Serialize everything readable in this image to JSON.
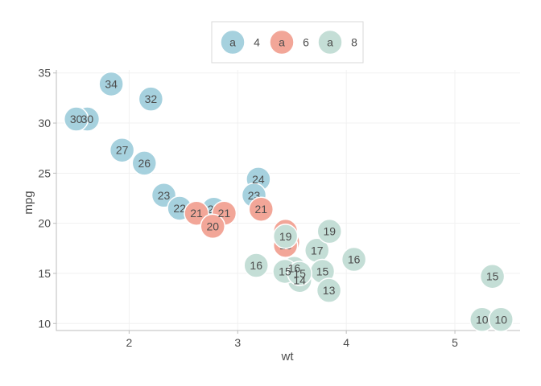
{
  "chart_data": {
    "type": "scatter",
    "xlabel": "wt",
    "ylabel": "mpg",
    "xlim": [
      1.33,
      5.6
    ],
    "ylim": [
      9.3,
      35.3
    ],
    "x_ticks": [
      2,
      3,
      4,
      5
    ],
    "y_ticks": [
      10,
      15,
      20,
      25,
      30,
      35
    ],
    "grid": true,
    "legend": {
      "placement": "top-center",
      "key_text": "a",
      "entries": [
        "4",
        "6",
        "8"
      ]
    },
    "colors": {
      "4": "#a6d1de",
      "6": "#f2a698",
      "8": "#c4ded6"
    },
    "series": [
      {
        "name": "4",
        "points": [
          {
            "x": 2.32,
            "y": 22.8,
            "label": "23"
          },
          {
            "x": 3.19,
            "y": 24.4,
            "label": "24"
          },
          {
            "x": 3.15,
            "y": 22.8,
            "label": "23"
          },
          {
            "x": 2.2,
            "y": 32.4,
            "label": "32"
          },
          {
            "x": 1.615,
            "y": 30.4,
            "label": "30"
          },
          {
            "x": 1.835,
            "y": 33.9,
            "label": "34"
          },
          {
            "x": 2.465,
            "y": 21.5,
            "label": "22"
          },
          {
            "x": 1.935,
            "y": 27.3,
            "label": "27"
          },
          {
            "x": 2.14,
            "y": 26.0,
            "label": "26"
          },
          {
            "x": 1.513,
            "y": 30.4,
            "label": "30"
          },
          {
            "x": 2.78,
            "y": 21.4,
            "label": "21"
          }
        ]
      },
      {
        "name": "6",
        "points": [
          {
            "x": 2.62,
            "y": 21.0,
            "label": "21"
          },
          {
            "x": 2.875,
            "y": 21.0,
            "label": "21"
          },
          {
            "x": 3.215,
            "y": 21.4,
            "label": "21"
          },
          {
            "x": 3.46,
            "y": 18.1,
            "label": "18"
          },
          {
            "x": 3.44,
            "y": 19.2,
            "label": "19"
          },
          {
            "x": 3.44,
            "y": 17.8,
            "label": "18"
          },
          {
            "x": 2.77,
            "y": 19.7,
            "label": "20"
          }
        ]
      },
      {
        "name": "8",
        "points": [
          {
            "x": 3.44,
            "y": 18.7,
            "label": "19"
          },
          {
            "x": 3.57,
            "y": 14.3,
            "label": "14"
          },
          {
            "x": 4.07,
            "y": 16.4,
            "label": "16"
          },
          {
            "x": 3.73,
            "y": 17.3,
            "label": "17"
          },
          {
            "x": 3.78,
            "y": 15.2,
            "label": "15"
          },
          {
            "x": 5.25,
            "y": 10.4,
            "label": "10"
          },
          {
            "x": 5.424,
            "y": 10.4,
            "label": "10"
          },
          {
            "x": 5.345,
            "y": 14.7,
            "label": "15"
          },
          {
            "x": 3.52,
            "y": 15.5,
            "label": "16"
          },
          {
            "x": 3.435,
            "y": 15.2,
            "label": "15"
          },
          {
            "x": 3.84,
            "y": 13.3,
            "label": "13"
          },
          {
            "x": 3.845,
            "y": 19.2,
            "label": "19"
          },
          {
            "x": 3.17,
            "y": 15.8,
            "label": "16"
          },
          {
            "x": 3.57,
            "y": 15.0,
            "label": "15"
          }
        ]
      }
    ]
  }
}
